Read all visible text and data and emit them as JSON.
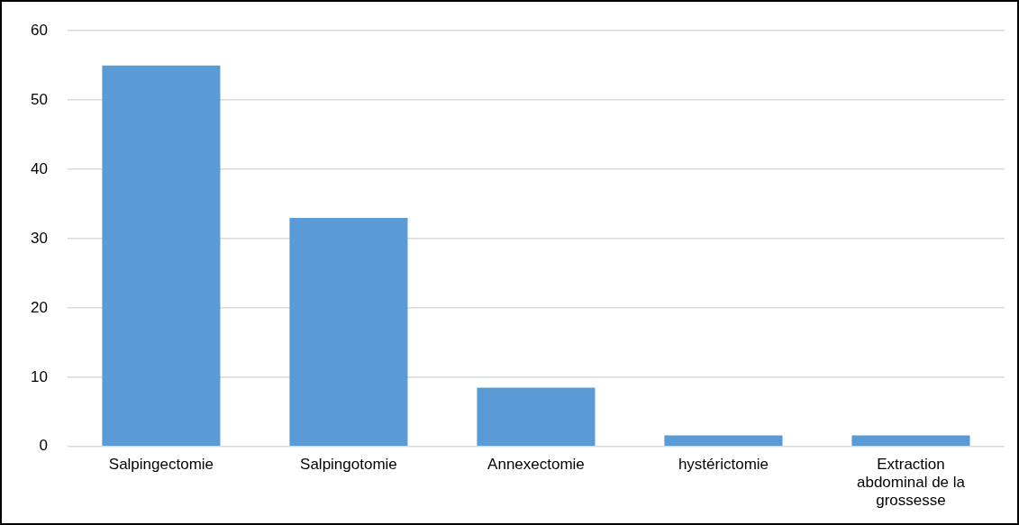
{
  "chart_data": {
    "type": "bar",
    "categories": [
      "Salpingectomie",
      "Salpingotomie",
      "Annexectomie",
      "hystérictomie",
      "Extraction abdominal de la grossesse"
    ],
    "values": [
      55,
      33,
      8.5,
      1.6,
      1.6
    ],
    "color": "#5b9bd5",
    "ylim": [
      0,
      60
    ],
    "yticks": [
      0,
      10,
      20,
      30,
      40,
      50,
      60
    ],
    "grid": "y",
    "legend": false
  }
}
